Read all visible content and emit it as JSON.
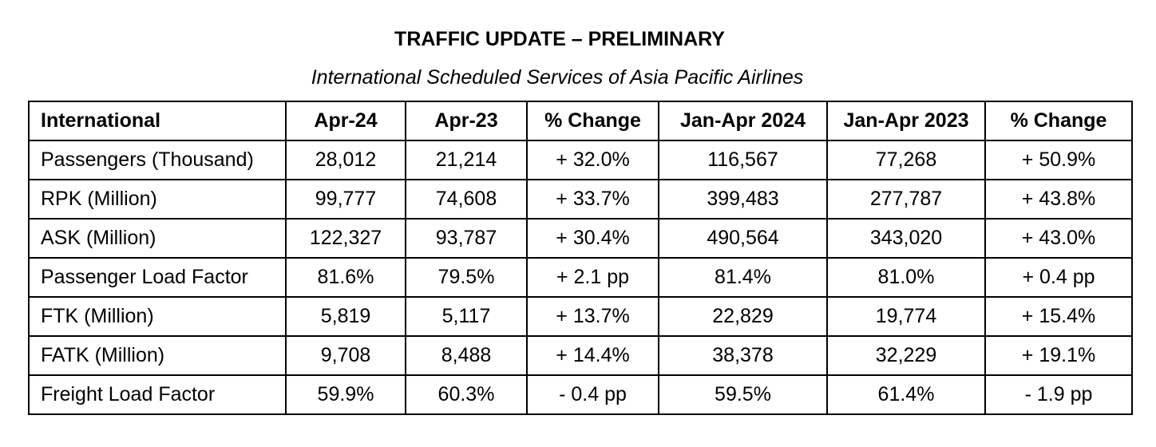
{
  "header": {
    "title": "TRAFFIC UPDATE – PRELIMINARY",
    "subtitle": "International Scheduled Services of Asia Pacific Airlines"
  },
  "table": {
    "columns": [
      "International",
      "Apr-24",
      "Apr-23",
      "% Change",
      "Jan-Apr 2024",
      "Jan-Apr 2023",
      "% Change"
    ],
    "rows": [
      [
        "Passengers (Thousand)",
        "28,012",
        "21,214",
        "+ 32.0%",
        "116,567",
        "77,268",
        "+ 50.9%"
      ],
      [
        "RPK (Million)",
        "99,777",
        "74,608",
        "+ 33.7%",
        "399,483",
        "277,787",
        "+ 43.8%"
      ],
      [
        "ASK (Million)",
        "122,327",
        "93,787",
        "+ 30.4%",
        "490,564",
        "343,020",
        "+ 43.0%"
      ],
      [
        "Passenger Load Factor",
        "81.6%",
        "79.5%",
        "+ 2.1 pp",
        "81.4%",
        "81.0%",
        "+ 0.4 pp"
      ],
      [
        "FTK (Million)",
        "5,819",
        "5,117",
        "+ 13.7%",
        "22,829",
        "19,774",
        "+ 15.4%"
      ],
      [
        "FATK (Million)",
        "9,708",
        "8,488",
        "+ 14.4%",
        "38,378",
        "32,229",
        "+ 19.1%"
      ],
      [
        "Freight Load Factor",
        "59.9%",
        "60.3%",
        "- 0.4 pp",
        "59.5%",
        "61.4%",
        "- 1.9 pp"
      ]
    ]
  }
}
